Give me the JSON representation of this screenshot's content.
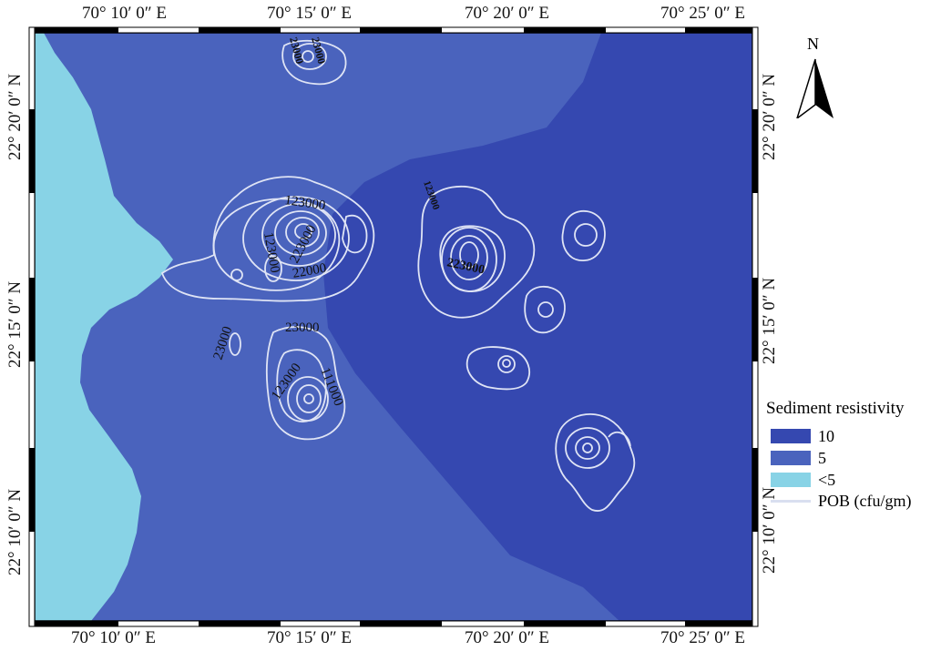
{
  "map": {
    "top_lon_labels": [
      "70° 10′ 0″ E",
      "70° 15′ 0″ E",
      "70° 20′ 0″ E",
      "70° 25′ 0″ E"
    ],
    "bottom_lon_labels": [
      "70° 10′ 0″ E",
      "70° 15′ 0″ E",
      "70° 20′ 0″ E",
      "70° 25′ 0″ E"
    ],
    "left_lat_labels": [
      "22° 20′ 0″ N",
      "22° 15′ 0″ N",
      "22° 10′ 0″ N"
    ],
    "right_lat_labels": [
      "22° 20′ 0″ N",
      "22° 15′ 0″ N",
      "22° 10′ 0″ N"
    ],
    "contour_labels": [
      "23000",
      "23000",
      "123000",
      "123000",
      "223000",
      "22000",
      "123000",
      "223000",
      "23000",
      "23000",
      "123000",
      "111000"
    ],
    "zone_colors": {
      "high": "#3548b0",
      "mid": "#4a63bd",
      "low": "#88d3e6",
      "contour": "#dfe4f5"
    }
  },
  "north_arrow": {
    "label": "N",
    "icon": "north-arrow-icon"
  },
  "legend": {
    "title": "Sediment resistivity",
    "items": [
      {
        "label": "10",
        "color": "#3548b0"
      },
      {
        "label": "5",
        "color": "#4a63bd"
      },
      {
        "label": "<5",
        "color": "#88d3e6"
      }
    ],
    "line_item": {
      "label": "POB (cfu/gm)",
      "color": "#d9dff0"
    }
  }
}
